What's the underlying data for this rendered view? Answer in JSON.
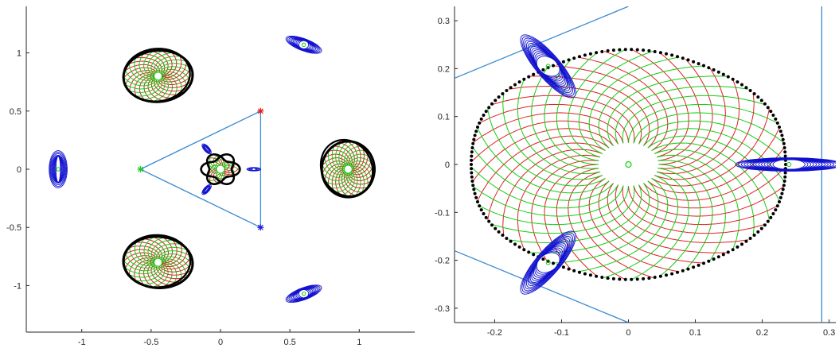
{
  "chart_data": [
    {
      "type": "scatter",
      "title": "",
      "xlabel": "",
      "ylabel": "",
      "xlim": [
        -1.4,
        1.4
      ],
      "ylim": [
        -1.4,
        1.4
      ],
      "x_ticks": [
        -1,
        -0.5,
        0,
        0.5,
        1
      ],
      "x_tick_labels": [
        "-1",
        "-0.5",
        "0",
        "0.5",
        "1"
      ],
      "y_ticks": [
        -1,
        -0.5,
        0,
        0.5,
        1
      ],
      "y_tick_labels": [
        "-1",
        "-0.5",
        "0",
        "0.5",
        "1"
      ],
      "grid": false,
      "legend": "none",
      "triangle_vertices": [
        {
          "x": -0.577,
          "y": 0,
          "color": "#22cc22"
        },
        {
          "x": 0.289,
          "y": 0.5,
          "color": "#dd2222"
        },
        {
          "x": 0.289,
          "y": -0.5,
          "color": "#2222dd"
        }
      ],
      "black_ellipses": [
        {
          "cx": -0.45,
          "cy": 0.8,
          "rx": 0.25,
          "ry": 0.22,
          "rot": 10
        },
        {
          "cx": -0.45,
          "cy": -0.8,
          "rx": 0.25,
          "ry": 0.22,
          "rot": -10
        },
        {
          "cx": 0.92,
          "cy": 0.0,
          "rx": 0.19,
          "ry": 0.24,
          "rot": 0
        }
      ],
      "blue_ellipses": [
        {
          "cx": 0.6,
          "cy": 1.07,
          "rx": 0.14,
          "ry": 0.05,
          "rot": -25
        },
        {
          "cx": 0.6,
          "cy": -1.07,
          "rx": 0.14,
          "ry": 0.05,
          "rot": 25
        },
        {
          "cx": -1.17,
          "cy": 0.0,
          "rx": 0.065,
          "ry": 0.16,
          "rot": 0
        }
      ],
      "small_blue_marks": [
        {
          "cx": -0.1,
          "cy": 0.175,
          "rx": 0.02,
          "ry": 0.05,
          "rot": 35
        },
        {
          "cx": -0.1,
          "cy": -0.175,
          "rx": 0.02,
          "ry": 0.05,
          "rot": -35
        },
        {
          "cx": 0.24,
          "cy": 0.0,
          "rx": 0.05,
          "ry": 0.015,
          "rot": 0
        }
      ],
      "colors": {
        "axis": "#262626",
        "triangle": "#3a8ad0",
        "black": "#000000",
        "red": "#e02020",
        "green": "#10d010",
        "blue": "#1010d0"
      }
    },
    {
      "type": "scatter",
      "title": "",
      "xlabel": "",
      "ylabel": "",
      "xlim": [
        -0.26,
        0.31
      ],
      "ylim": [
        -0.33,
        0.33
      ],
      "x_ticks": [
        -0.2,
        -0.1,
        0,
        0.1,
        0.2,
        0.3
      ],
      "x_tick_labels": [
        "-0.2",
        "-0.1",
        "0",
        "0.1",
        "0.2",
        "0.3"
      ],
      "y_ticks": [
        -0.3,
        -0.2,
        -0.1,
        0,
        0.1,
        0.2,
        0.3
      ],
      "y_tick_labels": [
        "-0.3",
        "-0.2",
        "-0.1",
        "0",
        "0.1",
        "0.2",
        "0.3"
      ],
      "grid": false,
      "legend": "none",
      "boundary_curve": {
        "r0": 0.215,
        "amp": 0.045,
        "k": 3,
        "color": "#000000"
      },
      "center_marker": {
        "x": 0.0,
        "y": 0.0,
        "color": "#10d010"
      },
      "blue_ellipses": [
        {
          "cx": -0.12,
          "cy": 0.205,
          "rx": 0.075,
          "ry": 0.02,
          "rot": -60
        },
        {
          "cx": -0.12,
          "cy": -0.205,
          "rx": 0.075,
          "ry": 0.02,
          "rot": 60
        },
        {
          "cx": 0.24,
          "cy": 0.0,
          "rx": 0.08,
          "ry": 0.014,
          "rot": 0
        }
      ],
      "triangle_lines": [
        {
          "x1": -0.26,
          "y1": 0.18,
          "x2": 0.0,
          "y2": 0.33
        },
        {
          "x1": -0.26,
          "y1": -0.18,
          "x2": 0.0,
          "y2": -0.33
        },
        {
          "x1": 0.289,
          "y1": -0.33,
          "x2": 0.289,
          "y2": 0.33
        }
      ],
      "colors": {
        "axis": "#262626",
        "triangle": "#3a8ad0",
        "black": "#000000",
        "red": "#e02020",
        "green": "#10d010",
        "blue": "#1010d0"
      }
    }
  ]
}
